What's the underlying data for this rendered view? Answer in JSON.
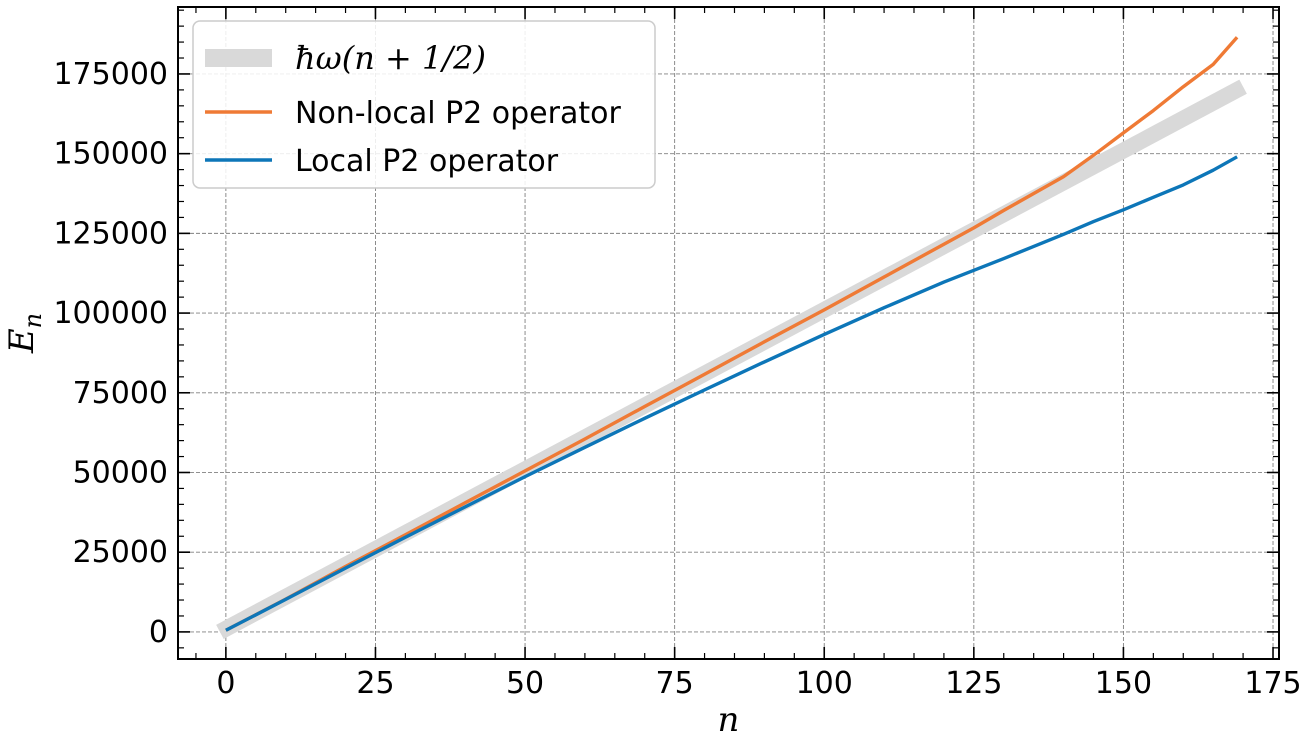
{
  "chart_data": {
    "type": "line",
    "title": "",
    "xlabel": "n",
    "ylabel": "E_n",
    "xlim": [
      -8,
      176
    ],
    "ylim": [
      -8500,
      196000
    ],
    "xticks": [
      0,
      25,
      50,
      75,
      100,
      125,
      150,
      175
    ],
    "yticks": [
      0,
      25000,
      50000,
      75000,
      100000,
      125000,
      150000,
      175000
    ],
    "xtick_labels": [
      "0",
      "25",
      "50",
      "75",
      "100",
      "125",
      "150",
      "175"
    ],
    "ytick_labels": [
      "0",
      "25000",
      "50000",
      "75000",
      "100000",
      "125000",
      "150000",
      "175000"
    ],
    "grid": true,
    "legend_position": "top-left",
    "series": [
      {
        "name": "ħω(n + 1/2)",
        "color": "#d9d9d9",
        "x": [
          -1,
          170
        ],
        "y": [
          0,
          171000
        ]
      },
      {
        "name": "Non-local P2 operator",
        "color": "#ef7a35",
        "x": [
          0,
          10,
          20,
          30,
          40,
          50,
          60,
          70,
          80,
          90,
          100,
          110,
          120,
          125,
          130,
          135,
          140,
          145,
          150,
          155,
          160,
          165,
          169
        ],
        "y": [
          500,
          10300,
          20500,
          30500,
          40500,
          50500,
          60500,
          70700,
          80800,
          91000,
          101000,
          111300,
          121600,
          126700,
          132200,
          137500,
          142800,
          149500,
          156500,
          163500,
          171000,
          178000,
          186500
        ]
      },
      {
        "name": "Local P2 operator",
        "color": "#0d76b8",
        "x": [
          0,
          10,
          20,
          30,
          40,
          50,
          60,
          70,
          80,
          90,
          100,
          110,
          120,
          130,
          135,
          140,
          145,
          150,
          155,
          160,
          165,
          169
        ],
        "y": [
          500,
          10200,
          20000,
          29700,
          39200,
          48700,
          57900,
          67000,
          75900,
          84700,
          93300,
          101700,
          109700,
          117100,
          120900,
          124700,
          128700,
          132400,
          136300,
          140200,
          144800,
          149000
        ]
      }
    ]
  }
}
